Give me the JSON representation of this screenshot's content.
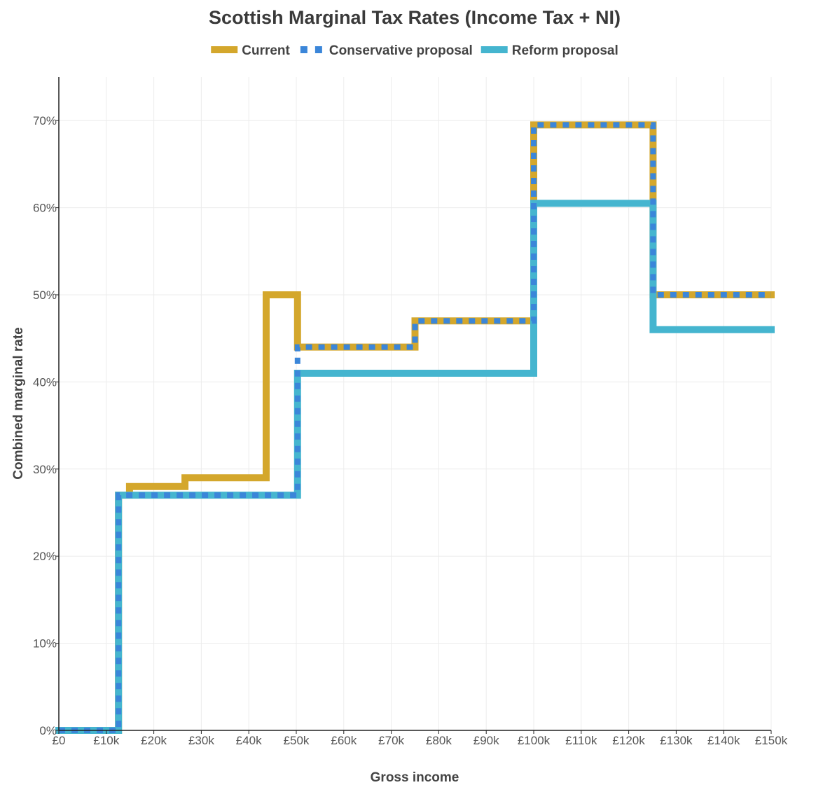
{
  "chart_data": {
    "type": "line",
    "step": true,
    "title": "Scottish Marginal Tax Rates (Income Tax + NI)",
    "xlabel": "Gross income",
    "ylabel": "Combined marginal rate",
    "xlim": [
      0,
      150000
    ],
    "ylim": [
      0,
      0.75
    ],
    "x_ticks": [
      {
        "value": 0,
        "label": "£0"
      },
      {
        "value": 10000,
        "label": "£10k"
      },
      {
        "value": 20000,
        "label": "£20k"
      },
      {
        "value": 30000,
        "label": "£30k"
      },
      {
        "value": 40000,
        "label": "£40k"
      },
      {
        "value": 50000,
        "label": "£50k"
      },
      {
        "value": 60000,
        "label": "£60k"
      },
      {
        "value": 70000,
        "label": "£70k"
      },
      {
        "value": 80000,
        "label": "£80k"
      },
      {
        "value": 90000,
        "label": "£90k"
      },
      {
        "value": 100000,
        "label": "£100k"
      },
      {
        "value": 110000,
        "label": "£110k"
      },
      {
        "value": 120000,
        "label": "£120k"
      },
      {
        "value": 130000,
        "label": "£130k"
      },
      {
        "value": 140000,
        "label": "£140k"
      },
      {
        "value": 150000,
        "label": "£150k"
      }
    ],
    "y_ticks": [
      {
        "value": 0,
        "label": "0%"
      },
      {
        "value": 0.1,
        "label": "10%"
      },
      {
        "value": 0.2,
        "label": "20%"
      },
      {
        "value": 0.3,
        "label": "30%"
      },
      {
        "value": 0.4,
        "label": "40%"
      },
      {
        "value": 0.5,
        "label": "50%"
      },
      {
        "value": 0.6,
        "label": "60%"
      },
      {
        "value": 0.7,
        "label": "70%"
      }
    ],
    "series": [
      {
        "name": "Current",
        "color": "#d4a72c",
        "style": "solid",
        "points": [
          [
            0,
            0
          ],
          [
            12570,
            0
          ],
          [
            12570,
            0.27
          ],
          [
            14876,
            0.27
          ],
          [
            14876,
            0.28
          ],
          [
            26561,
            0.28
          ],
          [
            26561,
            0.29
          ],
          [
            43662,
            0.29
          ],
          [
            43662,
            0.5
          ],
          [
            50270,
            0.5
          ],
          [
            50270,
            0.44
          ],
          [
            75000,
            0.44
          ],
          [
            75000,
            0.47
          ],
          [
            100000,
            0.47
          ],
          [
            100000,
            0.695
          ],
          [
            125140,
            0.695
          ],
          [
            125140,
            0.5
          ],
          [
            150000,
            0.5
          ]
        ]
      },
      {
        "name": "Reform proposal",
        "color": "#45b5cf",
        "style": "solid",
        "points": [
          [
            0,
            0
          ],
          [
            12570,
            0
          ],
          [
            12570,
            0.27
          ],
          [
            50270,
            0.27
          ],
          [
            50270,
            0.41
          ],
          [
            100000,
            0.41
          ],
          [
            100000,
            0.605
          ],
          [
            125140,
            0.605
          ],
          [
            125140,
            0.46
          ],
          [
            150000,
            0.46
          ]
        ]
      },
      {
        "name": "Conservative proposal",
        "color": "#3b86d9",
        "style": "dotted",
        "points": [
          [
            0,
            0
          ],
          [
            12570,
            0
          ],
          [
            12570,
            0.27
          ],
          [
            50270,
            0.27
          ],
          [
            50270,
            0.44
          ],
          [
            75000,
            0.44
          ],
          [
            75000,
            0.47
          ],
          [
            100000,
            0.47
          ],
          [
            100000,
            0.695
          ],
          [
            125140,
            0.695
          ],
          [
            125140,
            0.5
          ],
          [
            150000,
            0.5
          ]
        ]
      }
    ],
    "legend": [
      {
        "name": "Current",
        "color": "#d4a72c",
        "style": "solid"
      },
      {
        "name": "Conservative proposal",
        "color": "#3b86d9",
        "style": "dotted"
      },
      {
        "name": "Reform proposal",
        "color": "#45b5cf",
        "style": "solid"
      }
    ],
    "legend_position": "top-center"
  }
}
